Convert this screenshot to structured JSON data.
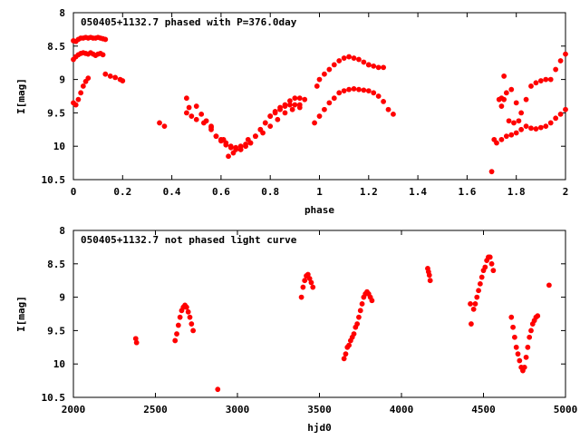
{
  "chart_data": [
    {
      "type": "scatter",
      "title": "050405+1132.7 phased with P=376.0day",
      "xlabel": "phase",
      "ylabel": "I[mag]",
      "xlim": [
        0,
        2
      ],
      "ylim": [
        10.5,
        8
      ],
      "y_inverted": true,
      "xticks": [
        "0",
        "0.2",
        "0.4",
        "0.6",
        "0.8",
        "1",
        "1.2",
        "1.4",
        "1.6",
        "1.8",
        "2"
      ],
      "yticks": [
        "8",
        "8.5",
        "9",
        "9.5",
        "10",
        "10.5"
      ],
      "marker_color": "#ff0000",
      "grid": false,
      "series": [
        {
          "x": [
            0.0,
            0.01,
            0.02,
            0.03,
            0.04,
            0.05,
            0.06,
            0.07,
            0.08,
            0.09,
            0.1,
            0.11,
            0.12,
            0.13,
            0.0,
            0.01,
            0.02,
            0.03,
            0.04,
            0.05,
            0.06,
            0.07,
            0.08,
            0.09,
            0.1,
            0.11,
            0.12,
            0.0,
            0.01,
            0.02,
            0.03,
            0.04,
            0.05,
            0.06,
            0.13,
            0.15,
            0.17,
            0.19,
            0.2,
            0.35,
            0.37,
            0.46,
            0.47,
            0.5,
            0.52,
            0.54,
            0.56,
            0.58,
            0.6,
            0.62,
            0.64,
            0.66,
            0.68,
            0.7,
            0.72,
            0.74,
            0.76,
            0.78,
            0.8,
            0.82,
            0.84,
            0.86,
            0.88,
            0.9,
            0.92,
            0.94,
            0.56,
            0.58,
            0.6,
            0.62,
            0.64,
            0.66,
            0.68,
            0.7,
            0.72,
            0.74,
            0.76,
            0.78,
            0.8,
            0.82,
            0.84,
            0.86,
            0.88,
            0.9,
            0.92,
            0.46,
            0.48,
            0.5,
            0.53,
            0.56,
            0.61,
            0.63,
            0.65,
            0.68,
            0.71,
            0.74,
            0.77,
            0.8,
            0.83,
            0.86,
            0.89,
            0.92,
            0.98,
            1.0,
            1.02,
            1.04,
            1.06,
            1.08,
            1.1,
            1.12,
            1.14,
            1.16,
            1.18,
            1.2,
            1.22,
            1.24,
            1.26,
            1.28,
            1.3,
            0.99,
            1.0,
            1.02,
            1.04,
            1.06,
            1.08,
            1.1,
            1.12,
            1.14,
            1.16,
            1.18,
            1.2,
            1.2,
            1.22,
            1.24,
            1.26,
            1.7,
            1.71,
            1.72,
            1.74,
            1.76,
            1.78,
            1.8,
            1.82,
            1.84,
            1.86,
            1.88,
            1.9,
            1.92,
            1.94,
            1.96,
            1.98,
            2.0,
            1.74,
            1.75,
            1.76,
            1.78,
            1.8,
            1.82,
            1.84,
            1.86,
            1.88,
            1.9,
            1.92,
            1.94,
            1.96,
            1.98,
            2.0,
            1.73,
            1.74,
            1.75,
            1.77,
            1.79,
            1.81
          ],
          "y": [
            8.42,
            8.43,
            8.4,
            8.38,
            8.38,
            8.37,
            8.38,
            8.37,
            8.38,
            8.38,
            8.37,
            8.38,
            8.39,
            8.4,
            8.7,
            8.66,
            8.63,
            8.61,
            8.6,
            8.61,
            8.62,
            8.6,
            8.62,
            8.64,
            8.62,
            8.61,
            8.63,
            9.35,
            9.38,
            9.3,
            9.2,
            9.1,
            9.03,
            8.98,
            8.92,
            8.95,
            8.97,
            9.0,
            9.02,
            9.65,
            9.7,
            9.28,
            9.42,
            9.4,
            9.52,
            9.62,
            9.72,
            9.85,
            9.92,
            9.98,
            10.02,
            10.02,
            10.0,
            9.97,
            9.95,
            9.85,
            9.75,
            9.65,
            9.55,
            9.5,
            9.45,
            9.38,
            9.32,
            9.28,
            9.28,
            9.3,
            9.7,
            9.85,
            9.9,
            9.95,
            10.0,
            10.05,
            10.05,
            10.0,
            9.95,
            9.85,
            9.75,
            9.65,
            9.55,
            9.48,
            9.42,
            9.4,
            9.38,
            9.38,
            9.38,
            9.5,
            9.55,
            9.6,
            9.65,
            9.75,
            9.9,
            10.15,
            10.1,
            10.05,
            9.9,
            9.85,
            9.8,
            9.7,
            9.6,
            9.5,
            9.45,
            9.42,
            9.65,
            9.55,
            9.45,
            9.35,
            9.28,
            9.2,
            9.17,
            9.15,
            9.14,
            9.15,
            9.16,
            9.17,
            9.2,
            9.25,
            9.33,
            9.45,
            9.52,
            9.1,
            9.0,
            8.92,
            8.85,
            8.78,
            8.72,
            8.68,
            8.66,
            8.68,
            8.7,
            8.74,
            8.78,
            8.78,
            8.8,
            8.82,
            8.82,
            10.38,
            9.9,
            9.95,
            9.9,
            9.85,
            9.83,
            9.8,
            9.75,
            9.7,
            9.73,
            9.74,
            9.72,
            9.7,
            9.65,
            9.58,
            9.52,
            9.45,
            9.4,
            9.3,
            9.2,
            9.15,
            9.35,
            9.5,
            9.3,
            9.1,
            9.05,
            9.02,
            9.0,
            9.0,
            8.85,
            8.72,
            8.62,
            9.3,
            9.28,
            8.95,
            9.62,
            9.65,
            9.62
          ]
        }
      ]
    },
    {
      "type": "scatter",
      "title": "050405+1132.7 not phased light curve",
      "xlabel": "hjd0",
      "ylabel": "I[mag]",
      "xlim": [
        2000,
        5000
      ],
      "ylim": [
        10.5,
        8
      ],
      "y_inverted": true,
      "xticks": [
        "2000",
        "2500",
        "3000",
        "3500",
        "4000",
        "4500",
        "5000"
      ],
      "yticks": [
        "8",
        "8.5",
        "9",
        "9.5",
        "10",
        "10.5"
      ],
      "marker_color": "#ff0000",
      "grid": false,
      "series": [
        {
          "x": [
            2380,
            2385,
            2620,
            2630,
            2640,
            2650,
            2660,
            2670,
            2680,
            2690,
            2700,
            2710,
            2720,
            2730,
            2880,
            3390,
            3400,
            3410,
            3420,
            3430,
            3440,
            3450,
            3460,
            3650,
            3660,
            3670,
            3680,
            3690,
            3700,
            3710,
            3720,
            3730,
            3740,
            3750,
            3760,
            3770,
            3780,
            3790,
            3800,
            3810,
            3820,
            4160,
            4165,
            4170,
            4175,
            4420,
            4425,
            4440,
            4450,
            4460,
            4470,
            4480,
            4490,
            4500,
            4510,
            4520,
            4530,
            4540,
            4550,
            4560,
            4670,
            4680,
            4690,
            4700,
            4710,
            4720,
            4730,
            4740,
            4750,
            4760,
            4770,
            4780,
            4790,
            4800,
            4810,
            4820,
            4830,
            4900
          ],
          "y": [
            9.62,
            9.68,
            9.65,
            9.55,
            9.42,
            9.3,
            9.2,
            9.15,
            9.12,
            9.15,
            9.22,
            9.3,
            9.4,
            9.5,
            10.38,
            9.0,
            8.85,
            8.75,
            8.68,
            8.66,
            8.72,
            8.78,
            8.85,
            9.92,
            9.85,
            9.75,
            9.72,
            9.65,
            9.6,
            9.55,
            9.45,
            9.4,
            9.3,
            9.2,
            9.1,
            9.0,
            8.95,
            8.92,
            8.95,
            9.0,
            9.05,
            8.57,
            8.62,
            8.67,
            8.75,
            9.1,
            9.4,
            9.18,
            9.1,
            9.0,
            8.9,
            8.8,
            8.7,
            8.6,
            8.55,
            8.45,
            8.4,
            8.4,
            8.5,
            8.6,
            9.3,
            9.45,
            9.6,
            9.75,
            9.85,
            9.95,
            10.05,
            10.1,
            10.05,
            9.9,
            9.75,
            9.6,
            9.5,
            9.4,
            9.35,
            9.3,
            9.28,
            8.82
          ]
        }
      ]
    }
  ]
}
